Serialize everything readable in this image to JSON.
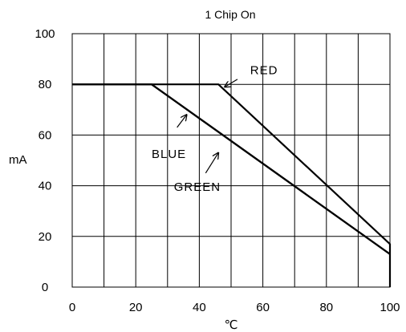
{
  "chart_data": {
    "type": "line",
    "title": "1 Chip On",
    "xlabel": "℃",
    "ylabel": "mA",
    "xlim": [
      0,
      100
    ],
    "ylim": [
      0,
      100
    ],
    "xticks": [
      0,
      20,
      40,
      60,
      80,
      100
    ],
    "xtick_labels": [
      "0",
      "20",
      "40",
      "60",
      "80",
      "100"
    ],
    "yticks": [
      0,
      20,
      40,
      60,
      80,
      100
    ],
    "ytick_labels": [
      "0",
      "20",
      "40",
      "60",
      "80",
      "100"
    ],
    "grid": true,
    "grid_x_step": 10,
    "grid_y_step": 20,
    "line_color": "#000000",
    "series": [
      {
        "name": "RED",
        "x": [
          0,
          46,
          100,
          100
        ],
        "y": [
          80,
          80,
          17,
          0
        ]
      },
      {
        "name": "BLUE",
        "x": [
          0,
          25,
          100
        ],
        "y": [
          80,
          80,
          13
        ]
      },
      {
        "name": "GREEN",
        "x": [
          0,
          25,
          100
        ],
        "y": [
          80,
          80,
          13
        ]
      }
    ],
    "annotations": [
      {
        "text": "RED",
        "x": 56,
        "y": 84,
        "arrow_from": [
          52,
          82
        ],
        "arrow_to": [
          48,
          79
        ]
      },
      {
        "text": "BLUE",
        "x": 25,
        "y": 51,
        "arrow_from": [
          33,
          63
        ],
        "arrow_to": [
          36,
          68
        ]
      },
      {
        "text": "GREEN",
        "x": 32,
        "y": 38,
        "arrow_from": [
          42,
          45
        ],
        "arrow_to": [
          46,
          53
        ]
      }
    ]
  }
}
